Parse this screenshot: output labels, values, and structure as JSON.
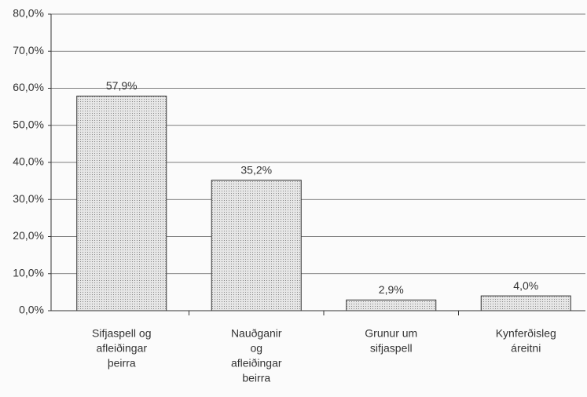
{
  "chart_data": {
    "type": "bar",
    "categories": [
      [
        "Sifjaspell og",
        "afleiðingar",
        "þeirra"
      ],
      [
        "Nauðganir",
        "og",
        "afleiðingar",
        "beirra"
      ],
      [
        "Grunur um",
        "sifjaspell"
      ],
      [
        "Kynferðisleg",
        "áreitni"
      ]
    ],
    "values": [
      57.9,
      35.2,
      2.9,
      4.0
    ],
    "value_labels": [
      "57,9%",
      "35,2%",
      "2,9%",
      "4,0%"
    ],
    "color": "#d4d4d4",
    "ylim": [
      0,
      80
    ],
    "yticks": [
      {
        "value": 0,
        "label": "0,0%"
      },
      {
        "value": 10,
        "label": "10,0%"
      },
      {
        "value": 20,
        "label": "20,0%"
      },
      {
        "value": 30,
        "label": "30,0%"
      },
      {
        "value": 40,
        "label": "40,0%"
      },
      {
        "value": 50,
        "label": "50,0%"
      },
      {
        "value": 60,
        "label": "60,0%"
      },
      {
        "value": 70,
        "label": "70,0%"
      },
      {
        "value": 80,
        "label": "80,0%"
      }
    ],
    "grid": true
  }
}
